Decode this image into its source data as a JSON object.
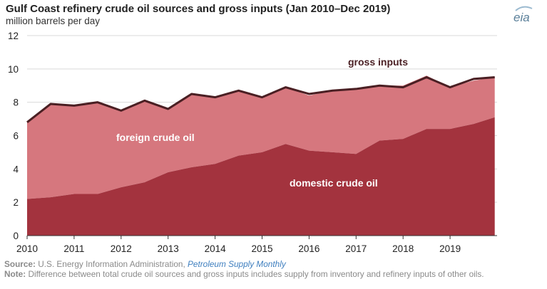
{
  "header": {
    "title": "Gulf Coast refinery crude oil sources and gross inputs (Jan 2010–Dec 2019)",
    "subtitle": "million barrels per day"
  },
  "logo": {
    "text": "eia",
    "icon": "eia-logo-icon"
  },
  "footer": {
    "source_label": "Source:",
    "source_text": "U.S. Energy Information Administration, ",
    "source_link": "Petroleum Supply Monthly",
    "note_label": "Note:",
    "note_text": "Difference between total crude oil sources and gross inputs includes supply from inventory and refinery inputs of other oils."
  },
  "colors": {
    "foreign": "#d6777e",
    "domestic": "#a3333e",
    "gross": "#4a1f23",
    "grid": "#d9d9d9",
    "axis": "#333333"
  },
  "chart_data": {
    "type": "area",
    "title": "Gulf Coast refinery crude oil sources and gross inputs (Jan 2010–Dec 2019)",
    "ylabel": "million barrels per day",
    "ylim": [
      0,
      12
    ],
    "yticks": [
      0,
      2,
      4,
      6,
      8,
      10,
      12
    ],
    "xlim": [
      2010,
      2020
    ],
    "xticks": [
      2010,
      2011,
      2012,
      2013,
      2014,
      2015,
      2016,
      2017,
      2018,
      2019
    ],
    "grid": true,
    "series_labels": [
      {
        "text": "gross inputs",
        "series": "gross inputs"
      },
      {
        "text": "foreign crude oil",
        "series": "foreign crude oil"
      },
      {
        "text": "domestic crude oil",
        "series": "domestic crude oil"
      }
    ],
    "series": [
      {
        "name": "domestic crude oil",
        "kind": "stacked-area",
        "color": "#a3333e",
        "x": [
          2010.0,
          2010.5,
          2011.0,
          2011.5,
          2012.0,
          2012.5,
          2013.0,
          2013.5,
          2014.0,
          2014.5,
          2015.0,
          2015.5,
          2016.0,
          2016.5,
          2017.0,
          2017.5,
          2018.0,
          2018.5,
          2019.0,
          2019.5,
          2019.95
        ],
        "values": [
          2.2,
          2.3,
          2.5,
          2.5,
          2.9,
          3.2,
          3.8,
          4.1,
          4.3,
          4.8,
          5.0,
          5.5,
          5.1,
          5.0,
          4.9,
          5.7,
          5.8,
          6.4,
          6.4,
          6.7,
          7.1
        ]
      },
      {
        "name": "foreign crude oil",
        "kind": "stacked-area",
        "color": "#d6777e",
        "x": [
          2010.0,
          2010.5,
          2011.0,
          2011.5,
          2012.0,
          2012.5,
          2013.0,
          2013.5,
          2014.0,
          2014.5,
          2015.0,
          2015.5,
          2016.0,
          2016.5,
          2017.0,
          2017.5,
          2018.0,
          2018.5,
          2019.0,
          2019.5,
          2019.95
        ],
        "values": [
          4.6,
          5.6,
          5.3,
          5.5,
          4.6,
          4.9,
          3.8,
          4.4,
          4.0,
          3.9,
          3.3,
          3.4,
          3.3,
          3.7,
          3.9,
          3.3,
          3.2,
          3.2,
          2.5,
          2.6,
          2.4
        ]
      },
      {
        "name": "gross inputs",
        "kind": "line",
        "color": "#4a1f23",
        "x": [
          2010.0,
          2010.5,
          2011.0,
          2011.5,
          2012.0,
          2012.5,
          2013.0,
          2013.5,
          2014.0,
          2014.5,
          2015.0,
          2015.5,
          2016.0,
          2016.5,
          2017.0,
          2017.5,
          2018.0,
          2018.5,
          2019.0,
          2019.5,
          2019.95
        ],
        "values": [
          6.8,
          7.9,
          7.8,
          8.0,
          7.5,
          8.1,
          7.6,
          8.5,
          8.3,
          8.7,
          8.3,
          8.9,
          8.5,
          8.7,
          8.8,
          9.0,
          8.9,
          9.5,
          8.9,
          9.4,
          9.5
        ]
      }
    ]
  }
}
